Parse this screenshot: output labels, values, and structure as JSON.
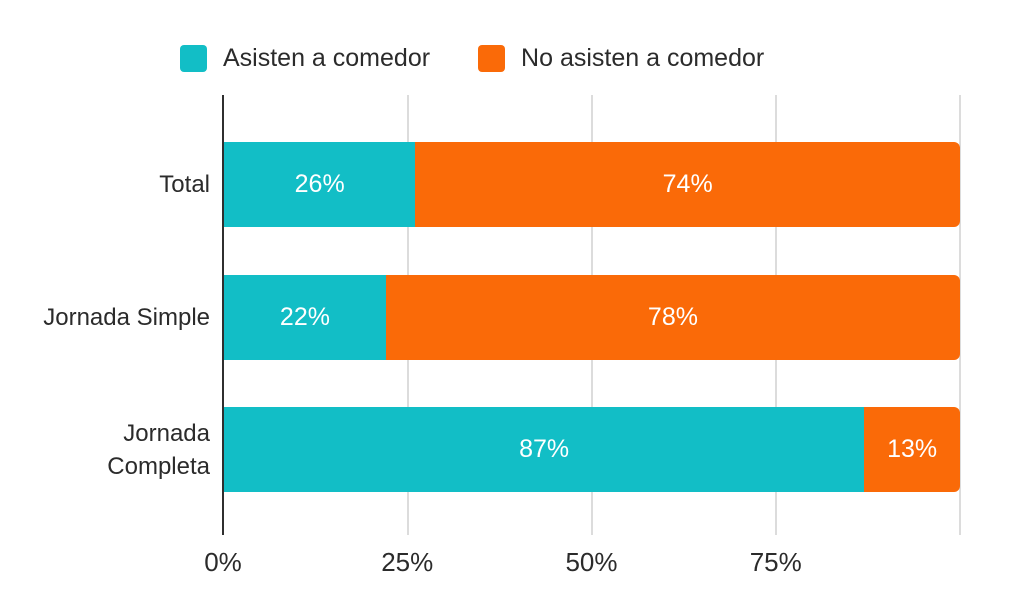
{
  "legend": {
    "items": [
      {
        "label": "Asisten a comedor",
        "color": "#12BEC6"
      },
      {
        "label": "No asisten a comedor",
        "color": "#FA6A08"
      }
    ]
  },
  "chart_data": {
    "type": "bar",
    "orientation": "horizontal",
    "stacked": true,
    "categories": [
      "Total",
      "Jornada Simple",
      "Jornada Completa"
    ],
    "series": [
      {
        "name": "Asisten a comedor",
        "color": "#12BEC6",
        "values": [
          26,
          22,
          87
        ]
      },
      {
        "name": "No asisten a comedor",
        "color": "#FA6A08",
        "values": [
          74,
          78,
          13
        ]
      }
    ],
    "data_labels": [
      [
        "26%",
        "74%"
      ],
      [
        "22%",
        "78%"
      ],
      [
        "87%",
        "13%"
      ]
    ],
    "x_ticks": [
      {
        "value": 0,
        "label": "0%"
      },
      {
        "value": 25,
        "label": "25%"
      },
      {
        "value": 50,
        "label": "50%"
      },
      {
        "value": 75,
        "label": "75%"
      },
      {
        "value": 100,
        "label": ""
      }
    ],
    "xlim": [
      0,
      100
    ],
    "value_suffix": "%",
    "grid": true,
    "legend_position": "top",
    "colors": {
      "grid": "#dcdcdc",
      "axis": "#2f2f2f",
      "text": "#2b2b2b",
      "bar_label": "#ffffff"
    }
  }
}
